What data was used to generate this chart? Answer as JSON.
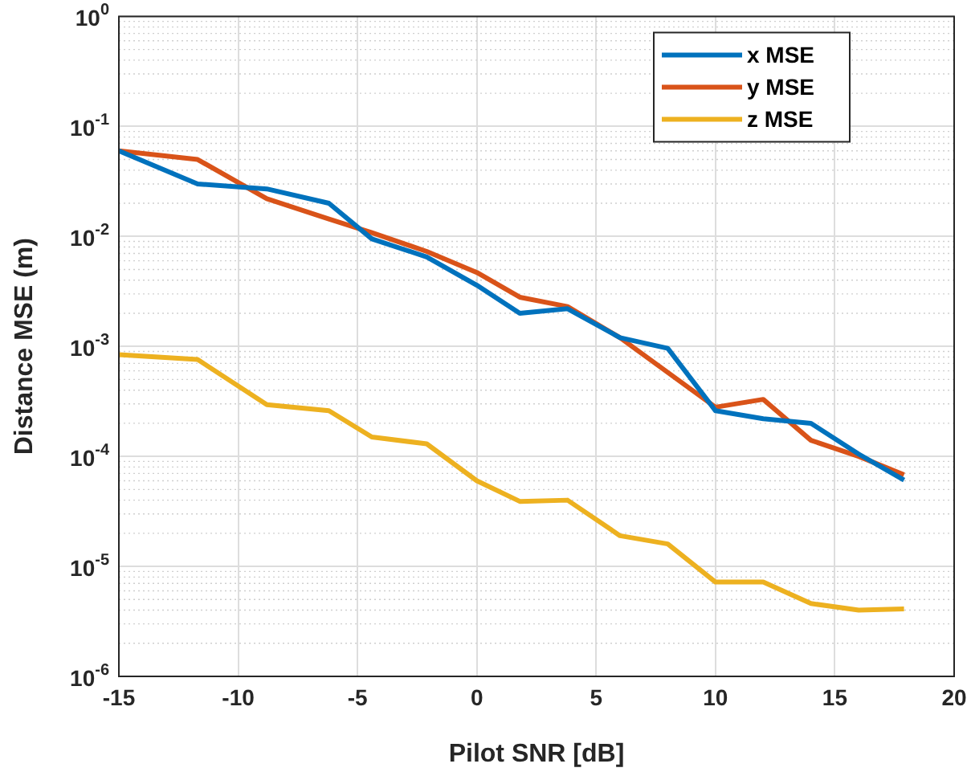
{
  "chart_data": {
    "type": "line",
    "xlabel": "Pilot SNR [dB]",
    "ylabel": "Distance MSE (m)",
    "x": [
      -15,
      -11.7,
      -8.8,
      -6.2,
      -4.4,
      -2.1,
      0,
      1.8,
      3.8,
      6,
      8,
      10,
      12,
      14,
      16,
      17.9
    ],
    "series": [
      {
        "name": "x MSE",
        "color": "#0072bd",
        "values": [
          0.06,
          0.03,
          0.027,
          0.02,
          0.0095,
          0.0065,
          0.0036,
          0.002,
          0.0022,
          0.0012,
          0.00096,
          0.00026,
          0.00022,
          0.0002,
          0.000105,
          6.1e-05
        ]
      },
      {
        "name": "y MSE",
        "color": "#d95319",
        "values": [
          0.06,
          0.05,
          0.022,
          0.0144,
          0.0108,
          0.0073,
          0.0047,
          0.0028,
          0.0023,
          0.0012,
          0.00058,
          0.00028,
          0.00033,
          0.00014,
          0.0001,
          6.8e-05
        ]
      },
      {
        "name": "z MSE",
        "color": "#edb120",
        "values": [
          0.00084,
          0.00076,
          0.000295,
          0.00026,
          0.00015,
          0.00013,
          6e-05,
          3.9e-05,
          4e-05,
          1.9e-05,
          1.6e-05,
          7.2e-06,
          7.2e-06,
          4.6e-06,
          4e-06,
          4.1e-06
        ]
      }
    ],
    "xlim": [
      -15,
      20
    ],
    "xticks": [
      -15,
      -10,
      -5,
      0,
      5,
      10,
      15,
      20
    ],
    "ylim": [
      1e-06,
      1
    ],
    "yticks": [
      {
        "value": 1e-06,
        "label": "10$^{-6}$"
      },
      {
        "value": 1e-05,
        "label": "10$^{-5}$"
      },
      {
        "value": 0.0001,
        "label": "10$^{-4}$"
      },
      {
        "value": 0.001,
        "label": "10$^{-3}$"
      },
      {
        "value": 0.01,
        "label": "10$^{-2}$"
      },
      {
        "value": 0.1,
        "label": "10$^{-1}$"
      },
      {
        "value": 1,
        "label": "10$^{0}$"
      }
    ],
    "log": "y",
    "grid": true,
    "legend": "top right",
    "marker": "none",
    "line_style": "solid"
  }
}
